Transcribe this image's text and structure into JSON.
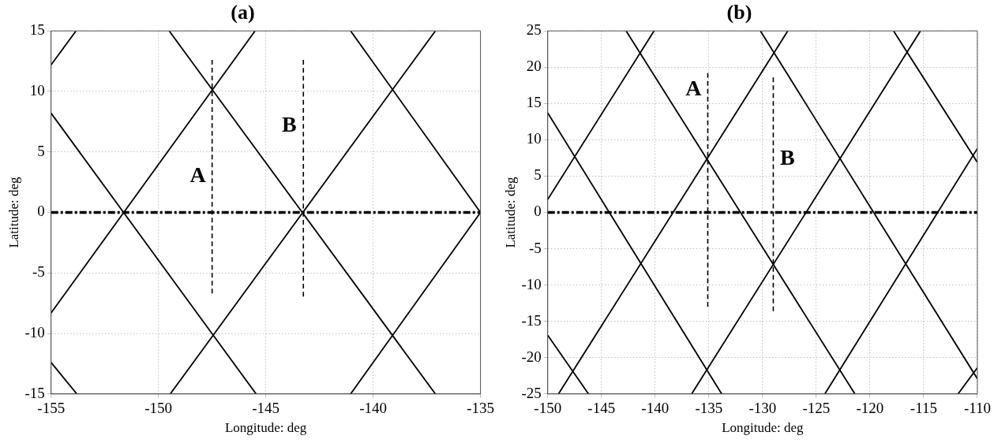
{
  "chart_data": [
    {
      "type": "line",
      "title": "(a)",
      "xlabel": "Longitude: deg",
      "ylabel": "Latitude: deg",
      "xlim": [
        -155,
        -135
      ],
      "ylim": [
        -15,
        15
      ],
      "xticks": [
        -155,
        -150,
        -145,
        -140,
        -135
      ],
      "yticks": [
        -15,
        -10,
        -5,
        0,
        5,
        10,
        15
      ],
      "grid": true,
      "marker": "none",
      "series": [
        {
          "color": "#000000",
          "x": [
            -155,
            -153.84
          ],
          "values": [
            12.2,
            15
          ]
        },
        {
          "color": "#000000",
          "x": [
            -155,
            -145.5
          ],
          "values": [
            -8.3,
            15
          ]
        },
        {
          "color": "#000000",
          "x": [
            -149.45,
            -137.1
          ],
          "values": [
            -15,
            15
          ]
        },
        {
          "color": "#000000",
          "x": [
            -141.05,
            -135
          ],
          "values": [
            -15,
            0
          ]
        },
        {
          "color": "#000000",
          "x": [
            -155,
            -145.45
          ],
          "values": [
            8.2,
            -15
          ]
        },
        {
          "color": "#000000",
          "x": [
            -155,
            -153.8
          ],
          "values": [
            -12.4,
            -15
          ]
        },
        {
          "color": "#000000",
          "x": [
            -149.5,
            -137.1
          ],
          "values": [
            15,
            -15
          ]
        },
        {
          "color": "#000000",
          "x": [
            -141.05,
            -135
          ],
          "values": [
            15,
            0
          ]
        },
        {
          "name": "A",
          "color": "#000000",
          "line_style": "dashed",
          "x": [
            -147.5,
            -147.5
          ],
          "values": [
            12.6,
            -6.7
          ]
        },
        {
          "name": "B",
          "color": "#000000",
          "line_style": "dashed",
          "x": [
            -143.25,
            -143.25
          ],
          "values": [
            12.6,
            -6.95
          ]
        }
      ],
      "ref_lines": [
        {
          "axis": "y",
          "value": 0,
          "color": "#000000",
          "line_style": "dashed"
        }
      ]
    },
    {
      "type": "line",
      "title": "(b)",
      "xlabel": "Longitude: deg",
      "ylabel": "Latitude: deg",
      "xlim": [
        -150,
        -110
      ],
      "ylim": [
        -25,
        25
      ],
      "xticks": [
        -150,
        -145,
        -140,
        -135,
        -130,
        -125,
        -120,
        -115,
        -110
      ],
      "yticks": [
        -25,
        -20,
        -15,
        -10,
        -5,
        0,
        5,
        10,
        15,
        20,
        25
      ],
      "grid": true,
      "marker": "none",
      "series": [
        {
          "color": "#000000",
          "x": [
            -150,
            -140.1
          ],
          "values": [
            1.8,
            25
          ]
        },
        {
          "color": "#000000",
          "x": [
            -149,
            -127.65
          ],
          "values": [
            -25,
            25
          ]
        },
        {
          "color": "#000000",
          "x": [
            -136.6,
            -115.3
          ],
          "values": [
            -25,
            25
          ]
        },
        {
          "color": "#000000",
          "x": [
            -124.2,
            -110
          ],
          "values": [
            -25,
            8.8
          ]
        },
        {
          "color": "#000000",
          "x": [
            -111.8,
            -110
          ],
          "values": [
            -25,
            -21.4
          ]
        },
        {
          "color": "#000000",
          "x": [
            -150,
            -133.8
          ],
          "values": [
            13.7,
            -25
          ]
        },
        {
          "color": "#000000",
          "x": [
            -142.7,
            -121.4
          ],
          "values": [
            25,
            -25
          ]
        },
        {
          "color": "#000000",
          "x": [
            -130.2,
            -110
          ],
          "values": [
            25,
            -22.9
          ]
        },
        {
          "color": "#000000",
          "x": [
            -117.8,
            -110
          ],
          "values": [
            25,
            6.9
          ]
        },
        {
          "color": "#000000",
          "x": [
            -150,
            -146.2
          ],
          "values": [
            -16.9,
            -25
          ]
        },
        {
          "name": "A",
          "color": "#000000",
          "line_style": "dashed",
          "x": [
            -135.1,
            -135.1
          ],
          "values": [
            19.2,
            -13
          ]
        },
        {
          "name": "B",
          "color": "#000000",
          "line_style": "dashed",
          "x": [
            -129,
            -129
          ],
          "values": [
            18.6,
            -13.6
          ]
        }
      ],
      "ref_lines": [
        {
          "axis": "y",
          "value": 0,
          "color": "#000000",
          "line_style": "dashed"
        }
      ]
    }
  ]
}
